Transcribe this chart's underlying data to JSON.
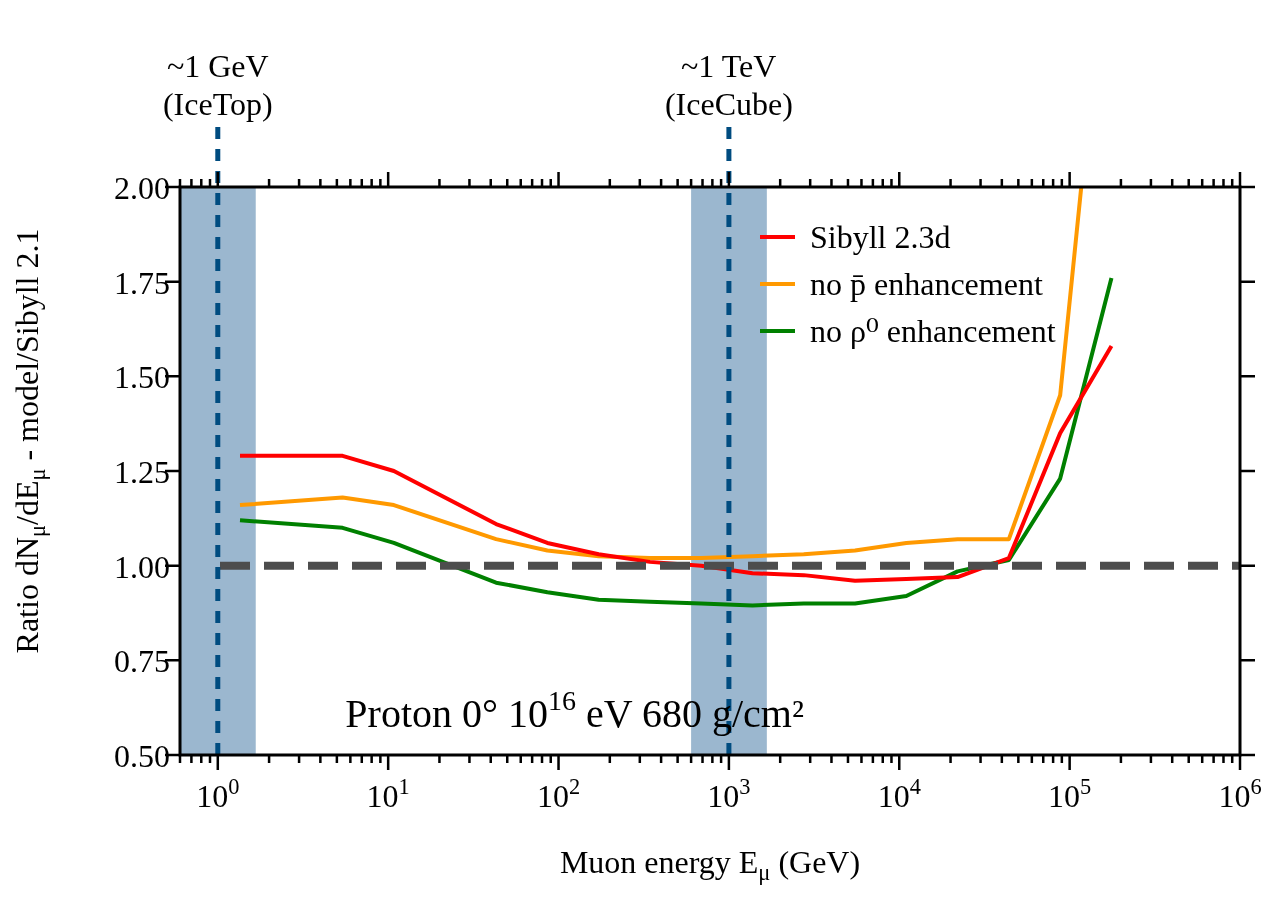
{
  "chart_data": {
    "type": "line",
    "xlabel": "Muon energy E$_{μ}$ (GeV)",
    "ylabel": "Ratio dN$_{μ}$/dE$_{μ}$ - model/Sibyll 2.1",
    "log": "x",
    "x": [
      1.35,
      5.4,
      10.8,
      43,
      86,
      172,
      344,
      688,
      1375,
      2750,
      5500,
      11000,
      22000,
      44000,
      88000,
      176000
    ],
    "series": [
      {
        "name": "Sibyll 2.3d",
        "color": "#ff0000",
        "values": [
          1.29,
          1.29,
          1.25,
          1.11,
          1.06,
          1.03,
          1.01,
          1.0,
          0.98,
          0.975,
          0.96,
          0.965,
          0.97,
          1.02,
          1.35,
          1.58
        ]
      },
      {
        "name": "no p̄ enhancement",
        "color": "#ff9900",
        "x": [
          1.35,
          5.4,
          10.8,
          43,
          86,
          172,
          344,
          688,
          1375,
          2750,
          5500,
          11000,
          22000,
          44000,
          88000,
          117000
        ],
        "values": [
          1.16,
          1.18,
          1.16,
          1.07,
          1.04,
          1.025,
          1.02,
          1.02,
          1.025,
          1.03,
          1.04,
          1.06,
          1.07,
          1.07,
          1.45,
          2.0
        ]
      },
      {
        "name": "no ρ⁰ enhancement",
        "color": "#008000",
        "values": [
          1.12,
          1.1,
          1.06,
          0.955,
          0.93,
          0.91,
          0.905,
          0.9,
          0.895,
          0.9,
          0.9,
          0.92,
          0.985,
          1.015,
          1.23,
          1.76
        ]
      }
    ],
    "xlim": [
      0.6,
      1000000
    ],
    "xticks": [
      {
        "value": 0.6,
        "label": null
      },
      {
        "value": 0.7,
        "label": null
      },
      {
        "value": 0.8,
        "label": null
      },
      {
        "value": 0.9,
        "label": null
      },
      {
        "value": 1,
        "label": "10$^{0}$"
      },
      {
        "value": 2,
        "label": null
      },
      {
        "value": 3,
        "label": null
      },
      {
        "value": 4,
        "label": null
      },
      {
        "value": 5,
        "label": null
      },
      {
        "value": 6,
        "label": null
      },
      {
        "value": 7,
        "label": null
      },
      {
        "value": 8,
        "label": null
      },
      {
        "value": 9,
        "label": null
      },
      {
        "value": 10,
        "label": "10$^{1}$"
      },
      {
        "value": 20,
        "label": null
      },
      {
        "value": 30,
        "label": null
      },
      {
        "value": 40,
        "label": null
      },
      {
        "value": 50,
        "label": null
      },
      {
        "value": 60,
        "label": null
      },
      {
        "value": 70,
        "label": null
      },
      {
        "value": 80,
        "label": null
      },
      {
        "value": 90,
        "label": null
      },
      {
        "value": 100,
        "label": "10$^{2}$"
      },
      {
        "value": 200,
        "label": null
      },
      {
        "value": 300,
        "label": null
      },
      {
        "value": 400,
        "label": null
      },
      {
        "value": 500,
        "label": null
      },
      {
        "value": 600,
        "label": null
      },
      {
        "value": 700,
        "label": null
      },
      {
        "value": 800,
        "label": null
      },
      {
        "value": 900,
        "label": null
      },
      {
        "value": 1000,
        "label": "10$^{3}$"
      },
      {
        "value": 2000,
        "label": null
      },
      {
        "value": 3000,
        "label": null
      },
      {
        "value": 4000,
        "label": null
      },
      {
        "value": 5000,
        "label": null
      },
      {
        "value": 6000,
        "label": null
      },
      {
        "value": 7000,
        "label": null
      },
      {
        "value": 8000,
        "label": null
      },
      {
        "value": 9000,
        "label": null
      },
      {
        "value": 10000,
        "label": "10$^{4}$"
      },
      {
        "value": 20000,
        "label": null
      },
      {
        "value": 30000,
        "label": null
      },
      {
        "value": 40000,
        "label": null
      },
      {
        "value": 50000,
        "label": null
      },
      {
        "value": 60000,
        "label": null
      },
      {
        "value": 70000,
        "label": null
      },
      {
        "value": 80000,
        "label": null
      },
      {
        "value": 90000,
        "label": null
      },
      {
        "value": 100000,
        "label": "10$^{5}$"
      },
      {
        "value": 200000,
        "label": null
      },
      {
        "value": 300000,
        "label": null
      },
      {
        "value": 400000,
        "label": null
      },
      {
        "value": 500000,
        "label": null
      },
      {
        "value": 600000,
        "label": null
      },
      {
        "value": 700000,
        "label": null
      },
      {
        "value": 800000,
        "label": null
      },
      {
        "value": 900000,
        "label": null
      },
      {
        "value": 1000000,
        "label": "10$^{6}$"
      }
    ],
    "ylim": [
      0.5,
      2.0
    ],
    "yticks": [
      {
        "value": 0.5,
        "label": "0.50"
      },
      {
        "value": 0.75,
        "label": "0.75"
      },
      {
        "value": 1.0,
        "label": "1.00"
      },
      {
        "value": 1.25,
        "label": "1.25"
      },
      {
        "value": 1.5,
        "label": "1.50"
      },
      {
        "value": 1.75,
        "label": "1.75"
      },
      {
        "value": 2.0,
        "label": "2.00"
      }
    ],
    "ref_lines": [
      {
        "axis": "y",
        "value": 1.0,
        "color": "#4d4d4d",
        "line_style": "dashed"
      },
      {
        "axis": "x",
        "value": 1,
        "label": "~1 GeV\n(IceTop)",
        "color": "#004c80",
        "line_style": "dashed"
      },
      {
        "axis": "x",
        "value": 1000,
        "label": "~1 TeV\n(IceCube)",
        "color": "#004c80",
        "line_style": "dashed"
      }
    ],
    "bands": [
      {
        "axis": "x",
        "from": 0.6,
        "to": 1.67,
        "color": "#9bb7cf"
      },
      {
        "axis": "x",
        "from": 600,
        "to": 1670,
        "color": "#9bb7cf"
      }
    ],
    "annotations": [
      "Proton 0° 10$^{16}$ eV 680 g/cm²"
    ],
    "legend": "top right"
  }
}
